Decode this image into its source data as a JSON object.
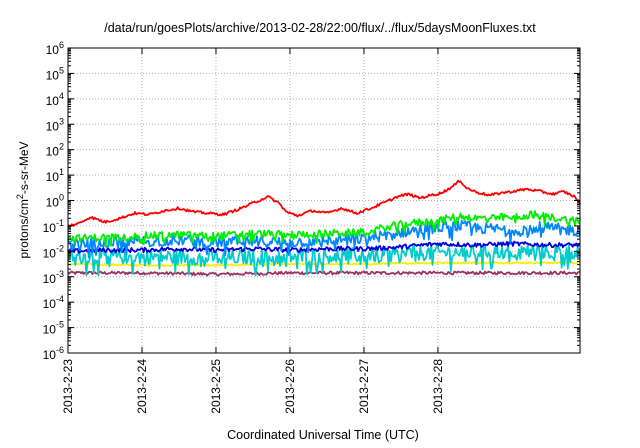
{
  "chart_data": {
    "type": "line",
    "title": "/data/run/goesPlots/archive/2013-02-28/22:00/flux/../flux/5daysMoonFluxes.txt",
    "xlabel": "Coordinated Universal Time (UTC)",
    "ylabel_parts": [
      "protons/cm",
      "2",
      "-s-sr-MeV"
    ],
    "yscale": "log",
    "ylim": [
      1e-06,
      1000000.0
    ],
    "xlim": [
      0,
      6.92
    ],
    "grid": true,
    "ytick_base": "10",
    "ytick_exponents": [
      "-6",
      "-5",
      "-4",
      "-3",
      "-2",
      "-1",
      "0",
      "1",
      "2",
      "3",
      "4",
      "5",
      "6"
    ],
    "xticks": [
      {
        "x": 0,
        "label": "2013-2-23"
      },
      {
        "x": 1,
        "label": "2013-2-24"
      },
      {
        "x": 2,
        "label": "2013-2-25"
      },
      {
        "x": 3,
        "label": "2013-2-26"
      },
      {
        "x": 4,
        "label": "2013-2-27"
      },
      {
        "x": 5,
        "label": "2013-2-28"
      }
    ],
    "series": [
      {
        "color": "#ff0000",
        "noise": 0.05,
        "points": [
          [
            0,
            -1.0
          ],
          [
            0.15,
            -0.9
          ],
          [
            0.3,
            -0.65
          ],
          [
            0.5,
            -0.85
          ],
          [
            0.7,
            -0.7
          ],
          [
            0.9,
            -0.5
          ],
          [
            1.1,
            -0.55
          ],
          [
            1.3,
            -0.4
          ],
          [
            1.5,
            -0.3
          ],
          [
            1.7,
            -0.45
          ],
          [
            1.9,
            -0.5
          ],
          [
            2.1,
            -0.55
          ],
          [
            2.3,
            -0.35
          ],
          [
            2.5,
            -0.1
          ],
          [
            2.7,
            0.15
          ],
          [
            2.85,
            -0.1
          ],
          [
            2.95,
            -0.45
          ],
          [
            3.1,
            -0.6
          ],
          [
            3.3,
            -0.4
          ],
          [
            3.5,
            -0.5
          ],
          [
            3.7,
            -0.3
          ],
          [
            3.9,
            -0.5
          ],
          [
            4.1,
            -0.3
          ],
          [
            4.3,
            -0.05
          ],
          [
            4.45,
            0.15
          ],
          [
            4.6,
            0.25
          ],
          [
            4.75,
            0.1
          ],
          [
            4.9,
            0.2
          ],
          [
            5.05,
            0.3
          ],
          [
            5.2,
            0.55
          ],
          [
            5.3,
            0.8
          ],
          [
            5.38,
            0.5
          ],
          [
            5.5,
            0.35
          ],
          [
            5.7,
            0.2
          ],
          [
            5.85,
            0.3
          ],
          [
            6.0,
            0.35
          ],
          [
            6.2,
            0.45
          ],
          [
            6.4,
            0.35
          ],
          [
            6.55,
            0.25
          ],
          [
            6.7,
            0.35
          ],
          [
            6.85,
            0.15
          ],
          [
            6.92,
            -0.1
          ]
        ]
      },
      {
        "color": "#00ee00",
        "noise": 0.15,
        "points": [
          [
            0,
            -1.5
          ],
          [
            0.5,
            -1.45
          ],
          [
            1.0,
            -1.4
          ],
          [
            1.5,
            -1.35
          ],
          [
            2.0,
            -1.4
          ],
          [
            2.5,
            -1.3
          ],
          [
            3.0,
            -1.35
          ],
          [
            3.5,
            -1.3
          ],
          [
            4.0,
            -1.25
          ],
          [
            4.3,
            -1.05
          ],
          [
            4.6,
            -0.9
          ],
          [
            5.0,
            -0.8
          ],
          [
            5.3,
            -0.6
          ],
          [
            5.5,
            -0.7
          ],
          [
            6.0,
            -0.65
          ],
          [
            6.3,
            -0.55
          ],
          [
            6.6,
            -0.7
          ],
          [
            6.92,
            -0.8
          ]
        ]
      },
      {
        "color": "#0088ff",
        "noise": 0.22,
        "points": [
          [
            0,
            -1.75
          ],
          [
            0.5,
            -1.65
          ],
          [
            1.0,
            -1.6
          ],
          [
            1.5,
            -1.55
          ],
          [
            2.0,
            -1.65
          ],
          [
            2.5,
            -1.6
          ],
          [
            3.0,
            -1.65
          ],
          [
            3.5,
            -1.55
          ],
          [
            4.0,
            -1.5
          ],
          [
            4.3,
            -1.35
          ],
          [
            4.6,
            -1.2
          ],
          [
            5.0,
            -1.05
          ],
          [
            5.3,
            -1.0
          ],
          [
            5.6,
            -1.1
          ],
          [
            6.0,
            -1.15
          ],
          [
            6.4,
            -1.05
          ],
          [
            6.92,
            -1.2
          ]
        ]
      },
      {
        "color": "#0000dd",
        "noise": 0.09,
        "points": [
          [
            0,
            -2.0
          ],
          [
            0.5,
            -1.95
          ],
          [
            1.0,
            -1.95
          ],
          [
            1.5,
            -1.9
          ],
          [
            2.0,
            -1.95
          ],
          [
            2.5,
            -1.9
          ],
          [
            3.0,
            -1.95
          ],
          [
            3.5,
            -1.9
          ],
          [
            4.0,
            -1.9
          ],
          [
            4.4,
            -1.85
          ],
          [
            5.0,
            -1.7
          ],
          [
            5.5,
            -1.75
          ],
          [
            6.0,
            -1.7
          ],
          [
            6.5,
            -1.75
          ],
          [
            6.92,
            -1.75
          ]
        ]
      },
      {
        "color": "#00cccc",
        "noise": 0.3,
        "points": [
          [
            0,
            -2.2
          ],
          [
            1.0,
            -2.2
          ],
          [
            2.0,
            -2.25
          ],
          [
            3.0,
            -2.2
          ],
          [
            4.0,
            -2.15
          ],
          [
            5.0,
            -2.05
          ],
          [
            6.0,
            -2.0
          ],
          [
            6.92,
            -2.0
          ]
        ]
      },
      {
        "color": "#ffee00",
        "noise": 0.03,
        "points": [
          [
            0,
            -2.5
          ],
          [
            1.0,
            -2.55
          ],
          [
            2.0,
            -2.55
          ],
          [
            3.0,
            -2.5
          ],
          [
            4.0,
            -2.5
          ],
          [
            5.0,
            -2.45
          ],
          [
            6.0,
            -2.45
          ],
          [
            6.92,
            -2.45
          ]
        ]
      },
      {
        "color": "#993366",
        "noise": 0.06,
        "points": [
          [
            0,
            -2.85
          ],
          [
            1.0,
            -2.85
          ],
          [
            2.0,
            -2.9
          ],
          [
            3.0,
            -2.85
          ],
          [
            4.0,
            -2.85
          ],
          [
            5.0,
            -2.85
          ],
          [
            6.0,
            -2.85
          ],
          [
            6.92,
            -2.85
          ]
        ]
      }
    ]
  }
}
